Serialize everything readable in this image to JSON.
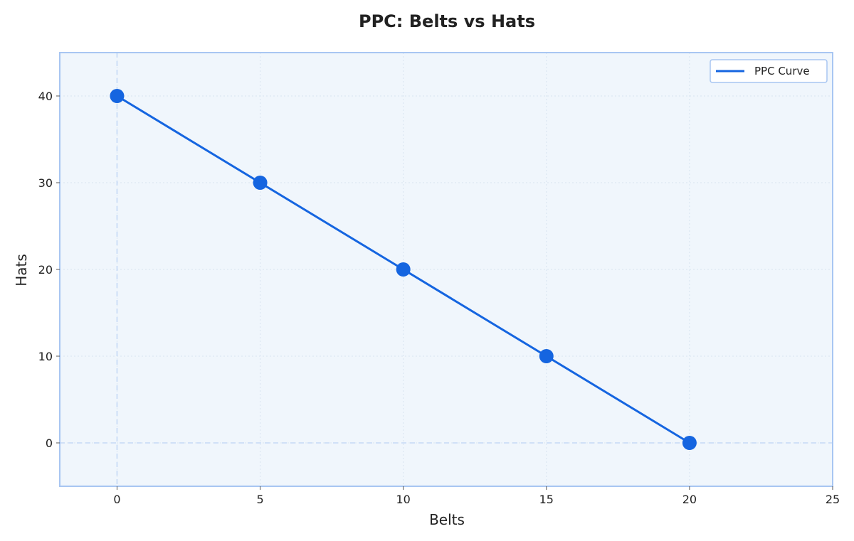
{
  "chart_data": {
    "type": "line",
    "title": "PPC: Belts vs Hats",
    "xlabel": "Belts",
    "ylabel": "Hats",
    "xlim": [
      -2,
      25
    ],
    "ylim": [
      -5,
      45
    ],
    "xticks": [
      0,
      5,
      10,
      15,
      20,
      25
    ],
    "yticks": [
      0,
      10,
      20,
      30,
      40
    ],
    "grid": true,
    "legend_position": "top-right",
    "reference_lines": {
      "x": 0,
      "y": 0
    },
    "series": [
      {
        "name": "PPC Curve",
        "x": [
          0,
          5,
          10,
          15,
          20
        ],
        "y": [
          40,
          30,
          20,
          10,
          0
        ],
        "markers": true
      }
    ]
  },
  "colors": {
    "line": "#1565e0",
    "plot_background": "#f0f6fc",
    "plot_border": "#a8c6f2",
    "grid": "#d8e4f0",
    "reference": "#c5d9f5"
  }
}
